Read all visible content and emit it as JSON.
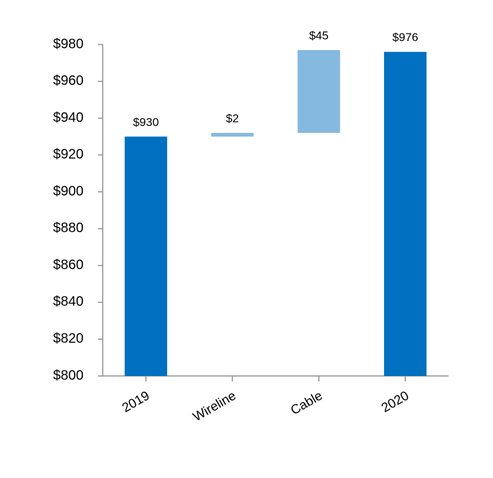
{
  "chart_data": {
    "type": "waterfall",
    "categories": [
      "2019",
      "Wireline",
      "Cable",
      "2020"
    ],
    "values": [
      930,
      2,
      45,
      976
    ],
    "value_labels": [
      "$930",
      "$2",
      "$45",
      "$976"
    ],
    "measure": [
      "total",
      "relative",
      "relative",
      "total"
    ],
    "colors": [
      "#0070c0",
      "#85b9e0",
      "#85b9e0",
      "#0070c0"
    ],
    "ylim": [
      800,
      980
    ],
    "yticks": [
      {
        "value": 800,
        "label": "$800"
      },
      {
        "value": 820,
        "label": "$820"
      },
      {
        "value": 840,
        "label": "$840"
      },
      {
        "value": 860,
        "label": "$860"
      },
      {
        "value": 880,
        "label": "$880"
      },
      {
        "value": 900,
        "label": "$900"
      },
      {
        "value": 920,
        "label": "$920"
      },
      {
        "value": 940,
        "label": "$940"
      },
      {
        "value": 960,
        "label": "$960"
      },
      {
        "value": 980,
        "label": "$980"
      }
    ],
    "grid": false
  }
}
